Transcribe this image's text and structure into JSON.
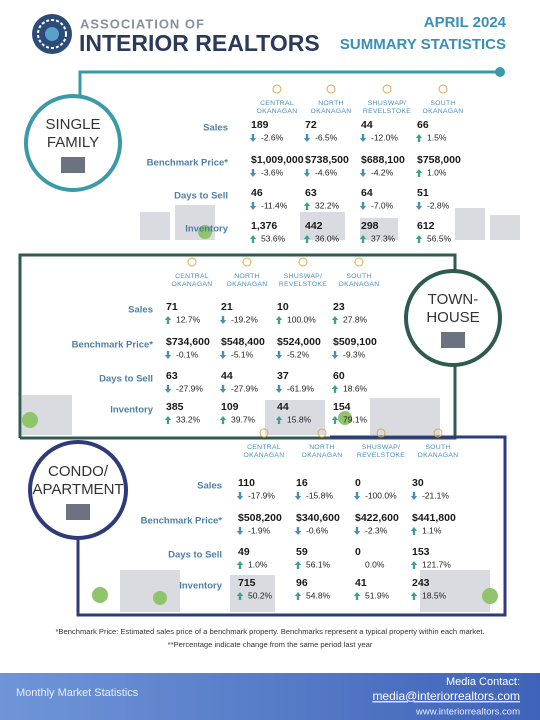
{
  "header": {
    "org_line1": "ASSOCIATION OF",
    "org_line2": "INTERIOR REALTORS",
    "title_line1": "APRIL 2024",
    "title_line2": "SUMMARY STATISTICS"
  },
  "sections": [
    {
      "label": [
        "SINGLE",
        "FAMILY"
      ],
      "regions": [
        [
          "CENTRAL",
          "OKANAGAN"
        ],
        [
          "NORTH",
          "OKANAGAN"
        ],
        [
          "SHUSWAP/",
          "REVELSTOKE"
        ],
        [
          "SOUTH",
          "OKANAGAN"
        ]
      ],
      "rows": [
        {
          "name": "Sales",
          "cells": [
            {
              "value": "189",
              "change": "-2.6%"
            },
            {
              "value": "72",
              "change": "-6.5%"
            },
            {
              "value": "44",
              "change": "-12.0%"
            },
            {
              "value": "66",
              "change": "1.5%"
            }
          ]
        },
        {
          "name": "Benchmark Price*",
          "cells": [
            {
              "value": "$1,009,000",
              "change": "-3.6%"
            },
            {
              "value": "$738,500",
              "change": "-4.6%"
            },
            {
              "value": "$688,100",
              "change": "-4.2%"
            },
            {
              "value": "$758,000",
              "change": "1.0%"
            }
          ]
        },
        {
          "name": "Days to Sell",
          "cells": [
            {
              "value": "46",
              "change": "-11.4%"
            },
            {
              "value": "63",
              "change": "32.2%"
            },
            {
              "value": "64",
              "change": "-7.0%"
            },
            {
              "value": "51",
              "change": "-2.8%"
            }
          ]
        },
        {
          "name": "Inventory",
          "cells": [
            {
              "value": "1,376",
              "change": "53.6%"
            },
            {
              "value": "442",
              "change": "36.0%"
            },
            {
              "value": "298",
              "change": "37.3%"
            },
            {
              "value": "612",
              "change": "56.5%"
            }
          ]
        }
      ]
    },
    {
      "label": [
        "TOWN-",
        "HOUSE"
      ],
      "regions": [
        [
          "CENTRAL",
          "OKANAGAN"
        ],
        [
          "NORTH",
          "OKANAGAN"
        ],
        [
          "SHUSWAP/",
          "REVELSTOKE"
        ],
        [
          "SOUTH",
          "OKANAGAN"
        ]
      ],
      "rows": [
        {
          "name": "Sales",
          "cells": [
            {
              "value": "71",
              "change": "12.7%"
            },
            {
              "value": "21",
              "change": "-19.2%"
            },
            {
              "value": "10",
              "change": "100.0%"
            },
            {
              "value": "23",
              "change": "27.8%"
            }
          ]
        },
        {
          "name": "Benchmark Price*",
          "cells": [
            {
              "value": "$734,600",
              "change": "-0.1%"
            },
            {
              "value": "$548,400",
              "change": "-5.1%"
            },
            {
              "value": "$524,000",
              "change": "-5.2%"
            },
            {
              "value": "$509,100",
              "change": "-9.3%"
            }
          ]
        },
        {
          "name": "Days to Sell",
          "cells": [
            {
              "value": "63",
              "change": "-27.9%"
            },
            {
              "value": "44",
              "change": "-27.9%"
            },
            {
              "value": "37",
              "change": "-61.9%"
            },
            {
              "value": "60",
              "change": "18.6%"
            }
          ]
        },
        {
          "name": "Inventory",
          "cells": [
            {
              "value": "385",
              "change": "33.2%"
            },
            {
              "value": "109",
              "change": "39.7%"
            },
            {
              "value": "44",
              "change": "15.8%"
            },
            {
              "value": "154",
              "change": "79.1%"
            }
          ]
        }
      ]
    },
    {
      "label": [
        "CONDO/",
        "APARTMENT"
      ],
      "regions": [
        [
          "CENTRAL",
          "OKANAGAN"
        ],
        [
          "NORTH",
          "OKANAGAN"
        ],
        [
          "SHUSWAP/",
          "REVELSTOKE"
        ],
        [
          "SOUTH",
          "OKANAGAN"
        ]
      ],
      "rows": [
        {
          "name": "Sales",
          "cells": [
            {
              "value": "110",
              "change": "-17.9%"
            },
            {
              "value": "16",
              "change": "-15.8%"
            },
            {
              "value": "0",
              "change": "-100.0%"
            },
            {
              "value": "30",
              "change": "-21.1%"
            }
          ]
        },
        {
          "name": "Benchmark Price*",
          "cells": [
            {
              "value": "$508,200",
              "change": "-1.9%"
            },
            {
              "value": "$340,600",
              "change": "-0.6%"
            },
            {
              "value": "$422,600",
              "change": "-2.3%"
            },
            {
              "value": "$441,800",
              "change": "1.1%"
            }
          ]
        },
        {
          "name": "Days to Sell",
          "cells": [
            {
              "value": "49",
              "change": "1.0%"
            },
            {
              "value": "59",
              "change": "56.1%"
            },
            {
              "value": "0",
              "change": "0.0%"
            },
            {
              "value": "153",
              "change": "121.7%"
            }
          ]
        },
        {
          "name": "Inventory",
          "cells": [
            {
              "value": "715",
              "change": "50.2%"
            },
            {
              "value": "96",
              "change": "54.8%"
            },
            {
              "value": "41",
              "change": "51.9%"
            },
            {
              "value": "243",
              "change": "18.5%"
            }
          ]
        }
      ]
    }
  ],
  "footnotes": [
    "*Benchmark Price: Estimated sales price of a benchmark property. Benchmarks represent a typical property within each market.",
    "**Percentage indicate change from the same period last year"
  ],
  "footer": {
    "left": "Monthly Market Statistics",
    "contact_label": "Media Contact:",
    "email": "media@interiorrealtors.com",
    "website": "www.interiorrealtors.com"
  }
}
